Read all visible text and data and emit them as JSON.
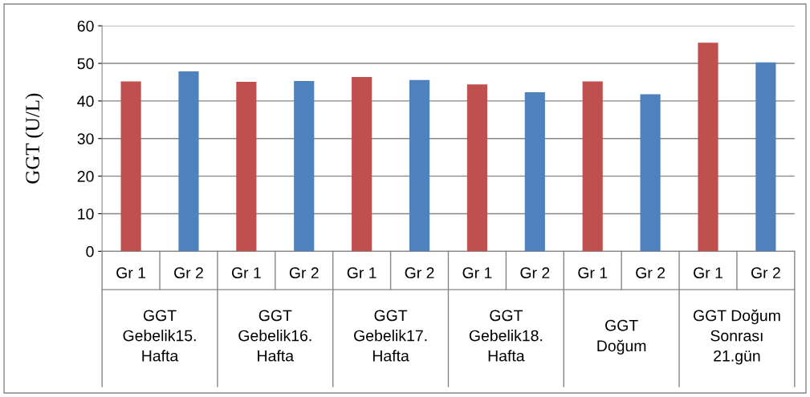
{
  "chart_data": {
    "type": "bar",
    "ylabel": "GGT (U/L)",
    "categories": [
      "Gr 1",
      "Gr 2",
      "Gr 1",
      "Gr 2",
      "Gr 1",
      "Gr 2",
      "Gr 1",
      "Gr 2",
      "Gr 1",
      "Gr 2",
      "Gr 1",
      "Gr 2"
    ],
    "values": [
      45.2,
      47.9,
      45.1,
      45.3,
      46.4,
      45.6,
      44.4,
      42.3,
      45.2,
      41.8,
      55.5,
      50.3
    ],
    "colors": [
      "#c0504d",
      "#4f81bd",
      "#c0504d",
      "#4f81bd",
      "#c0504d",
      "#4f81bd",
      "#c0504d",
      "#4f81bd",
      "#c0504d",
      "#4f81bd",
      "#c0504d",
      "#4f81bd"
    ],
    "annotations": [
      "GGT\nGebelik15.\nHafta",
      "GGT\nGebelik16.\nHafta",
      "GGT\nGebelik17.\nHafta",
      "GGT\nGebelik18.\nHafta",
      "GGT\nDoğum",
      "GGT Doğum\nSonrası\n21.gün"
    ],
    "ylim": [
      0,
      60
    ],
    "yticks": [
      0,
      10,
      20,
      30,
      40,
      50,
      60
    ],
    "grid": "y"
  }
}
